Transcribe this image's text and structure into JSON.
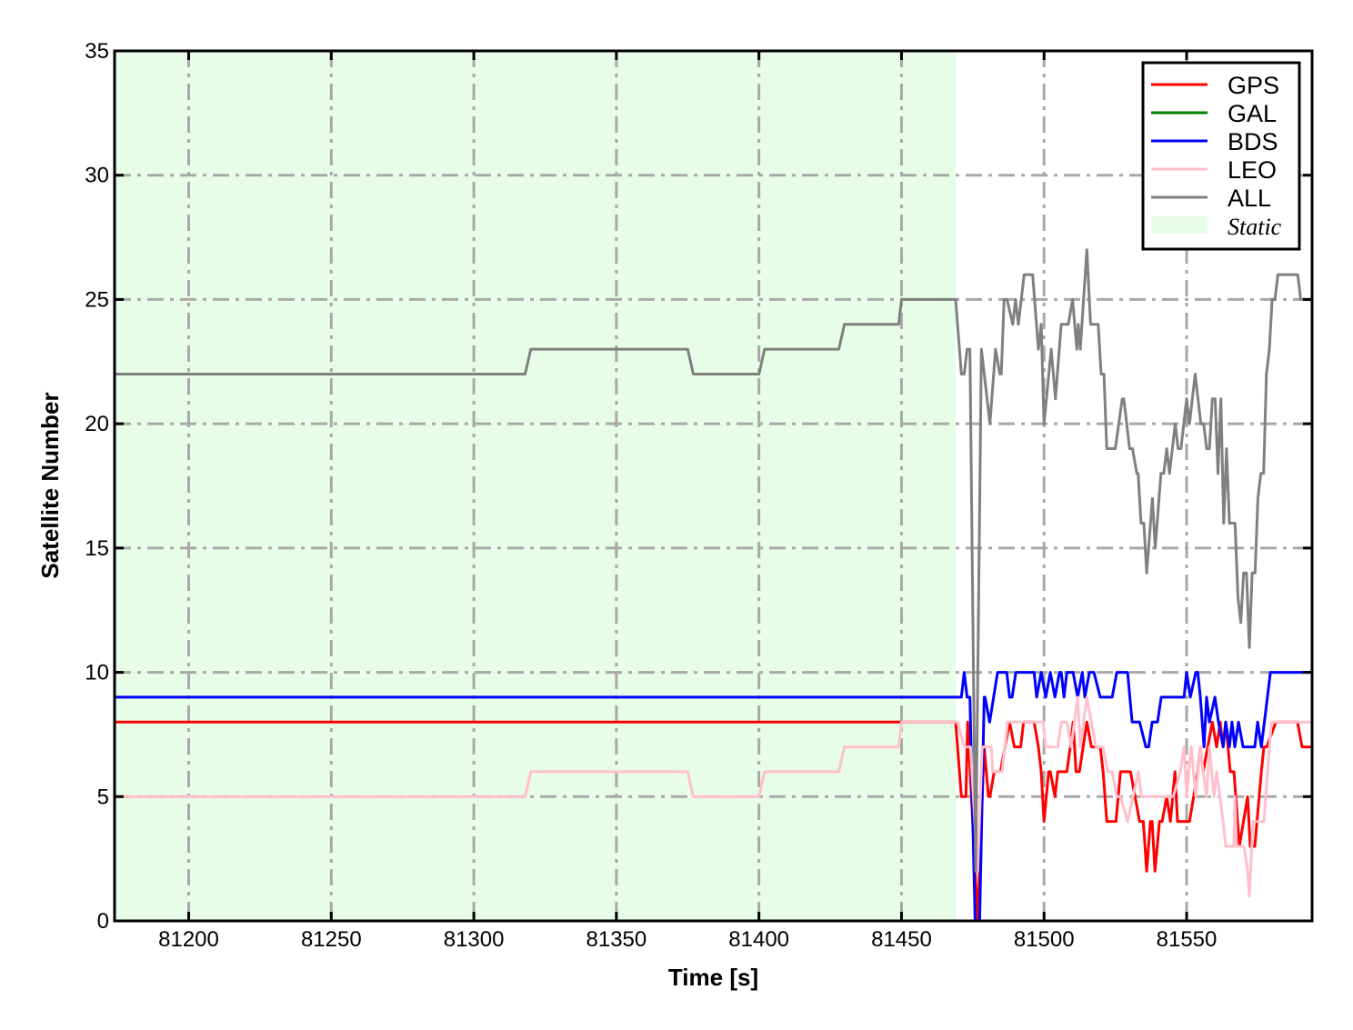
{
  "chart_data": {
    "type": "line",
    "title": "",
    "xlabel": "Time [s]",
    "ylabel": "Satellite Number",
    "xlim": [
      81174,
      81594
    ],
    "ylim": [
      0,
      35
    ],
    "xticks": [
      81200,
      81250,
      81300,
      81350,
      81400,
      81450,
      81500,
      81550
    ],
    "yticks": [
      0,
      5,
      10,
      15,
      20,
      25,
      30,
      35
    ],
    "grid": true,
    "legend_position": "top-right",
    "shaded_regions": [
      {
        "name": "Static",
        "x_start": 81174,
        "x_end": 81469,
        "color": "#e8fde8"
      }
    ],
    "series": [
      {
        "name": "GPS",
        "color": "#ff0000",
        "points": [
          [
            81174,
            8
          ],
          [
            81469,
            8
          ],
          [
            81471,
            5
          ],
          [
            81472.6,
            5
          ],
          [
            81473.2,
            8
          ],
          [
            81476.7,
            0
          ],
          [
            81479,
            7
          ],
          [
            81480.5,
            5
          ],
          [
            81481,
            5
          ],
          [
            81482.5,
            6
          ],
          [
            81484.7,
            6
          ],
          [
            81487.9,
            8
          ],
          [
            81489.6,
            7
          ],
          [
            81491.8,
            7
          ],
          [
            81492.8,
            8
          ],
          [
            81496.5,
            8
          ],
          [
            81498,
            7
          ],
          [
            81499,
            6
          ],
          [
            81500,
            4
          ],
          [
            81501.6,
            6
          ],
          [
            81502.2,
            6
          ],
          [
            81503.8,
            5
          ],
          [
            81504.8,
            6
          ],
          [
            81508,
            6
          ],
          [
            81509.2,
            7
          ],
          [
            81510.2,
            8
          ],
          [
            81511.2,
            6
          ],
          [
            81512.4,
            6
          ],
          [
            81515,
            8
          ],
          [
            81516.6,
            7
          ],
          [
            81519.7,
            7
          ],
          [
            81520.7,
            6
          ],
          [
            81522,
            4
          ],
          [
            81525.2,
            4
          ],
          [
            81526.8,
            6
          ],
          [
            81530.3,
            6
          ],
          [
            81533.5,
            4
          ],
          [
            81534.8,
            4
          ],
          [
            81536,
            2
          ],
          [
            81537.3,
            4
          ],
          [
            81537.9,
            4
          ],
          [
            81538.9,
            2
          ],
          [
            81540.5,
            4
          ],
          [
            81541.4,
            4
          ],
          [
            81543,
            5
          ],
          [
            81544.3,
            4
          ],
          [
            81545.9,
            6
          ],
          [
            81546.8,
            4
          ],
          [
            81551,
            4
          ],
          [
            81553.9,
            6
          ],
          [
            81554.8,
            7
          ],
          [
            81555.8,
            6
          ],
          [
            81559,
            8
          ],
          [
            81560.5,
            7
          ],
          [
            81561.8,
            8
          ],
          [
            81562.8,
            7
          ],
          [
            81563.7,
            8
          ],
          [
            81565.3,
            6
          ],
          [
            81566.6,
            6
          ],
          [
            81568.5,
            3
          ],
          [
            81571.4,
            5
          ],
          [
            81572.3,
            3
          ],
          [
            81573.9,
            3
          ],
          [
            81576.2,
            6
          ],
          [
            81577.1,
            7
          ],
          [
            81578.1,
            7
          ],
          [
            81581.3,
            8
          ],
          [
            81588.9,
            8
          ],
          [
            81590.5,
            7
          ],
          [
            81594,
            7
          ]
        ]
      },
      {
        "name": "GAL",
        "color": "#008000",
        "points": [
          [
            81174,
            0
          ],
          [
            81594,
            0
          ]
        ]
      },
      {
        "name": "BDS",
        "color": "#0000ff",
        "points": [
          [
            81174,
            9
          ],
          [
            81471,
            9
          ],
          [
            81472,
            10
          ],
          [
            81473,
            9
          ],
          [
            81474,
            9
          ],
          [
            81475.8,
            0
          ],
          [
            81477.4,
            0
          ],
          [
            81479,
            9
          ],
          [
            81479.3,
            9
          ],
          [
            81480.9,
            8
          ],
          [
            81483.7,
            10
          ],
          [
            81486.9,
            10
          ],
          [
            81487.9,
            9
          ],
          [
            81488.8,
            9
          ],
          [
            81490.1,
            10
          ],
          [
            81496.5,
            10
          ],
          [
            81497.4,
            9
          ],
          [
            81499,
            10
          ],
          [
            81500.6,
            9
          ],
          [
            81502.2,
            10
          ],
          [
            81503.8,
            9
          ],
          [
            81505.4,
            10
          ],
          [
            81506,
            10
          ],
          [
            81507,
            9
          ],
          [
            81508,
            10
          ],
          [
            81510.2,
            10
          ],
          [
            81511.8,
            9
          ],
          [
            81513.4,
            10
          ],
          [
            81514.3,
            9
          ],
          [
            81515.9,
            10
          ],
          [
            81517.5,
            10
          ],
          [
            81519.7,
            9
          ],
          [
            81523.9,
            9
          ],
          [
            81525.5,
            10
          ],
          [
            81529.3,
            10
          ],
          [
            81530.9,
            8
          ],
          [
            81533.5,
            8
          ],
          [
            81535.7,
            7
          ],
          [
            81536.7,
            7
          ],
          [
            81537.9,
            8
          ],
          [
            81539.8,
            8
          ],
          [
            81541.1,
            9
          ],
          [
            81549.1,
            9
          ],
          [
            81550,
            10
          ],
          [
            81551.3,
            9
          ],
          [
            81553.2,
            10
          ],
          [
            81553.9,
            10
          ],
          [
            81554.8,
            9
          ],
          [
            81556.1,
            7
          ],
          [
            81557,
            9
          ],
          [
            81558,
            8
          ],
          [
            81559.9,
            9
          ],
          [
            81561.2,
            8
          ],
          [
            81562.8,
            7
          ],
          [
            81563.7,
            8
          ],
          [
            81565,
            7
          ],
          [
            81565.9,
            8
          ],
          [
            81566.9,
            7
          ],
          [
            81568.2,
            8
          ],
          [
            81569.8,
            7
          ],
          [
            81573.9,
            7
          ],
          [
            81574.9,
            8
          ],
          [
            81576.2,
            7
          ],
          [
            81579.4,
            10
          ],
          [
            81594,
            10
          ]
        ]
      },
      {
        "name": "LEO",
        "color": "#ffc0cb",
        "points": [
          [
            81174,
            5
          ],
          [
            81318,
            5
          ],
          [
            81320,
            6
          ],
          [
            81375,
            6
          ],
          [
            81377,
            5
          ],
          [
            81400,
            5
          ],
          [
            81402,
            6
          ],
          [
            81428,
            6
          ],
          [
            81430,
            7
          ],
          [
            81449,
            7
          ],
          [
            81450,
            8
          ],
          [
            81469.7,
            8
          ],
          [
            81472,
            7
          ],
          [
            81474.2,
            7
          ],
          [
            81476.7,
            2
          ],
          [
            81478.3,
            7
          ],
          [
            81481.5,
            7
          ],
          [
            81482,
            6
          ],
          [
            81485.3,
            6
          ],
          [
            81487.2,
            8
          ],
          [
            81499.7,
            8
          ],
          [
            81500.6,
            7
          ],
          [
            81504.8,
            7
          ],
          [
            81506,
            8
          ],
          [
            81508,
            8
          ],
          [
            81509.5,
            7
          ],
          [
            81511.8,
            9
          ],
          [
            81512.7,
            7
          ],
          [
            81515,
            9
          ],
          [
            81516.6,
            8
          ],
          [
            81518.2,
            7
          ],
          [
            81520.7,
            7
          ],
          [
            81522.3,
            6
          ],
          [
            81523.9,
            6
          ],
          [
            81525.5,
            5
          ],
          [
            81526.8,
            5
          ],
          [
            81529.3,
            4
          ],
          [
            81533.1,
            6
          ],
          [
            81534.1,
            5
          ],
          [
            81545.3,
            5
          ],
          [
            81547.8,
            6
          ],
          [
            81549.1,
            7
          ],
          [
            81550,
            5
          ],
          [
            81551.6,
            7
          ],
          [
            81553.2,
            5
          ],
          [
            81554.8,
            7
          ],
          [
            81555.8,
            6
          ],
          [
            81557,
            5
          ],
          [
            81558,
            7
          ],
          [
            81559.6,
            5
          ],
          [
            81560.5,
            6
          ],
          [
            81562.8,
            4
          ],
          [
            81563.7,
            3
          ],
          [
            81566.6,
            3
          ],
          [
            81566.9,
            5
          ],
          [
            81567.5,
            3
          ],
          [
            81570.1,
            3
          ],
          [
            81571.4,
            2
          ],
          [
            81572,
            1
          ],
          [
            81573.3,
            4
          ],
          [
            81576.2,
            4
          ],
          [
            81577.1,
            4
          ],
          [
            81579.7,
            8
          ],
          [
            81594,
            8
          ]
        ]
      },
      {
        "name": "ALL",
        "color": "#808080",
        "points": [
          [
            81174,
            22
          ],
          [
            81318,
            22
          ],
          [
            81320,
            23
          ],
          [
            81375,
            23
          ],
          [
            81377,
            22
          ],
          [
            81400,
            22
          ],
          [
            81402,
            23
          ],
          [
            81428,
            23
          ],
          [
            81430,
            24
          ],
          [
            81449,
            24
          ],
          [
            81450,
            25
          ],
          [
            81469,
            25
          ],
          [
            81471,
            22
          ],
          [
            81472,
            22
          ],
          [
            81473,
            23
          ],
          [
            81474,
            23
          ],
          [
            81476,
            2
          ],
          [
            81478,
            23
          ],
          [
            81481,
            20
          ],
          [
            81483,
            23
          ],
          [
            81484.5,
            22
          ],
          [
            81485,
            22
          ],
          [
            81486,
            25
          ],
          [
            81487,
            25
          ],
          [
            81489,
            24
          ],
          [
            81490,
            25
          ],
          [
            81491,
            24
          ],
          [
            81493,
            26
          ],
          [
            81496,
            26
          ],
          [
            81498,
            23
          ],
          [
            81499,
            24
          ],
          [
            81500,
            20
          ],
          [
            81502.5,
            23
          ],
          [
            81504,
            21
          ],
          [
            81506,
            24
          ],
          [
            81508.5,
            24
          ],
          [
            81510,
            25
          ],
          [
            81511.5,
            23
          ],
          [
            81512,
            24
          ],
          [
            81512.7,
            23
          ],
          [
            81515,
            27
          ],
          [
            81516.3,
            24
          ],
          [
            81519,
            24
          ],
          [
            81520,
            22
          ],
          [
            81521,
            22
          ],
          [
            81522,
            19
          ],
          [
            81525,
            19
          ],
          [
            81527.4,
            21
          ],
          [
            81528,
            21
          ],
          [
            81530,
            19
          ],
          [
            81531,
            19
          ],
          [
            81532.5,
            18
          ],
          [
            81533,
            18
          ],
          [
            81534,
            16
          ],
          [
            81535,
            16
          ],
          [
            81536,
            14
          ],
          [
            81538,
            17
          ],
          [
            81539,
            15
          ],
          [
            81541,
            18
          ],
          [
            81542,
            18
          ],
          [
            81543,
            19
          ],
          [
            81544,
            18
          ],
          [
            81546,
            20
          ],
          [
            81547,
            19
          ],
          [
            81548,
            19
          ],
          [
            81550,
            21
          ],
          [
            81551,
            20
          ],
          [
            81553,
            22
          ],
          [
            81555,
            20
          ],
          [
            81556,
            20
          ],
          [
            81557,
            19
          ],
          [
            81558,
            19
          ],
          [
            81559,
            21
          ],
          [
            81560,
            21
          ],
          [
            81561,
            18
          ],
          [
            81562,
            21
          ],
          [
            81563,
            16
          ],
          [
            81564,
            19
          ],
          [
            81565,
            16
          ],
          [
            81567,
            16
          ],
          [
            81568,
            13
          ],
          [
            81569,
            12
          ],
          [
            81570,
            14
          ],
          [
            81571,
            14
          ],
          [
            81572,
            11
          ],
          [
            81573,
            14
          ],
          [
            81574,
            14
          ],
          [
            81575,
            17
          ],
          [
            81576,
            18
          ],
          [
            81577,
            18
          ],
          [
            81578,
            22
          ],
          [
            81579,
            23
          ],
          [
            81580,
            25
          ],
          [
            81581,
            25
          ],
          [
            81582,
            26
          ],
          [
            81589,
            26
          ],
          [
            81590,
            25
          ],
          [
            81594,
            25
          ]
        ]
      }
    ],
    "legend": [
      "GPS",
      "GAL",
      "BDS",
      "LEO",
      "ALL",
      "Static"
    ]
  }
}
